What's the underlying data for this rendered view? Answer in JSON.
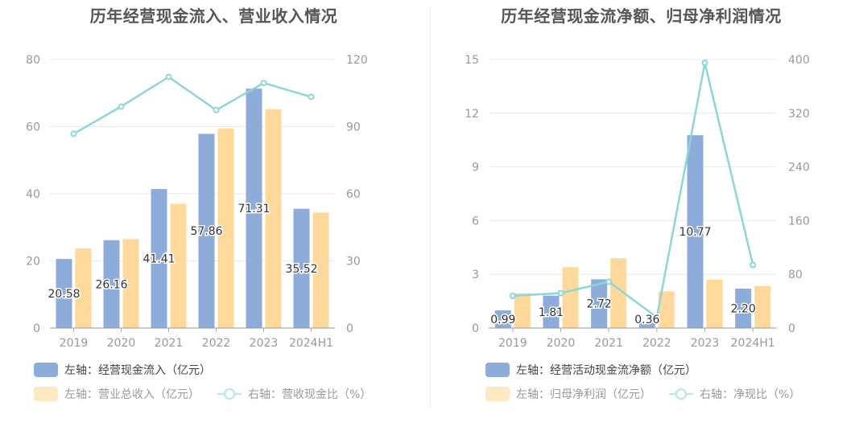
{
  "colors": {
    "bar_primary": "#8EACDA",
    "bar_secondary": "#FFD99B",
    "bar_secondary_faded": "#FFE8C4",
    "line": "#8DD6D8",
    "axis_text": "#999999",
    "grid": "#E6E8EE",
    "title": "#555555"
  },
  "chart_data": [
    {
      "type": "bar",
      "title": "历年经营现金流入、营业收入情况",
      "categories": [
        "2019",
        "2020",
        "2021",
        "2022",
        "2023",
        "2024H1"
      ],
      "y_left": {
        "ylim": [
          0,
          80
        ],
        "ticks": [
          "0",
          "20",
          "40",
          "60",
          "80"
        ]
      },
      "y_right": {
        "ylim": [
          0,
          120
        ],
        "ticks": [
          "0",
          "30",
          "60",
          "90",
          "120"
        ]
      },
      "series": [
        {
          "name": "左轴：经营现金流入（亿元）",
          "type": "bar",
          "axis": "left",
          "color": "#8EACDA",
          "values": [
            20.58,
            26.16,
            41.41,
            57.86,
            71.31,
            35.52
          ],
          "labels": [
            "20.58",
            "26.16",
            "41.41",
            "57.86",
            "71.31",
            "35.52"
          ]
        },
        {
          "name": "左轴：营业总收入（亿元）",
          "type": "bar",
          "axis": "left",
          "color": "#FFD99B",
          "values": [
            23.7,
            26.5,
            37.0,
            59.5,
            65.2,
            34.4
          ]
        },
        {
          "name": "右轴：营收现金比（%）",
          "type": "line",
          "axis": "right",
          "color": "#8DD6D8",
          "values": [
            86.8,
            99.0,
            112.2,
            97.4,
            109.5,
            103.3
          ]
        }
      ],
      "legend": [
        {
          "label": "左轴：经营现金流入（亿元）",
          "kind": "bar",
          "color": "#8EACDA",
          "faded": false
        },
        {
          "label": "左轴：营业总收入（亿元）",
          "kind": "bar",
          "color": "#FFE8C4",
          "faded": true
        },
        {
          "label": "右轴：营收现金比（%）",
          "kind": "line",
          "color": "#8DD6D8",
          "faded": true
        }
      ]
    },
    {
      "type": "bar",
      "title": "历年经营现金流净额、归母净利润情况",
      "categories": [
        "2019",
        "2020",
        "2021",
        "2022",
        "2023",
        "2024H1"
      ],
      "y_left": {
        "ylim": [
          0,
          15
        ],
        "ticks": [
          "0",
          "3",
          "6",
          "9",
          "12",
          "15"
        ]
      },
      "y_right": {
        "ylim": [
          0,
          400
        ],
        "ticks": [
          "0",
          "80",
          "160",
          "240",
          "320",
          "400"
        ]
      },
      "series": [
        {
          "name": "左轴：经营活动现金流净额（亿元）",
          "type": "bar",
          "axis": "left",
          "color": "#8EACDA",
          "values": [
            0.99,
            1.81,
            2.72,
            0.36,
            10.77,
            2.2
          ],
          "labels": [
            "0.99",
            "1.81",
            "2.72",
            "0.36",
            "10.77",
            "2.20"
          ]
        },
        {
          "name": "左轴：归母净利润（亿元）",
          "type": "bar",
          "axis": "left",
          "color": "#FFD99B",
          "values": [
            1.95,
            3.4,
            3.9,
            2.05,
            2.7,
            2.35
          ]
        },
        {
          "name": "右轴：净现比（%）",
          "type": "line",
          "axis": "right",
          "color": "#8DD6D8",
          "values": [
            48,
            52,
            69,
            16,
            395,
            94
          ]
        }
      ],
      "legend": [
        {
          "label": "左轴：经营活动现金流净额（亿元）",
          "kind": "bar",
          "color": "#8EACDA",
          "faded": false
        },
        {
          "label": "左轴：归母净利润（亿元）",
          "kind": "bar",
          "color": "#FFE8C4",
          "faded": true
        },
        {
          "label": "右轴：净现比（%）",
          "kind": "line",
          "color": "#8DD6D8",
          "faded": true
        }
      ]
    }
  ]
}
